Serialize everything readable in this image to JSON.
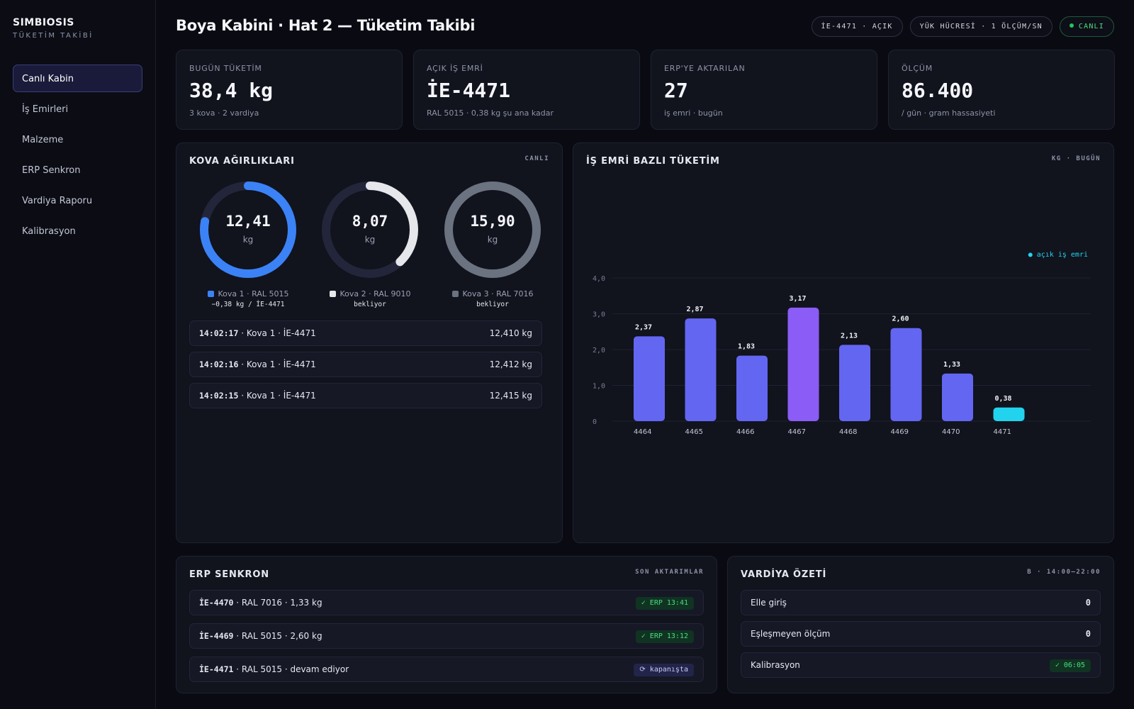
{
  "brand": {
    "title": "SIMBIOSIS",
    "subtitle": "TÜKETİM TAKİBİ"
  },
  "nav": [
    {
      "label": "Canlı Kabin",
      "active": true
    },
    {
      "label": "İş Emirleri"
    },
    {
      "label": "Malzeme"
    },
    {
      "label": "ERP Senkron"
    },
    {
      "label": "Vardiya Raporu"
    },
    {
      "label": "Kalibrasyon"
    }
  ],
  "header": {
    "title": "Boya Kabini · Hat 2 — Tüketim Takibi",
    "pills": [
      "İE-4471 · AÇIK",
      "YÜK HÜCRESİ · 1 ÖLÇÜM/SN",
      "CANLI"
    ]
  },
  "kpis": [
    {
      "label": "BUGÜN TÜKETİM",
      "value": "38,4 kg",
      "sub": "3 kova · 2 vardiya"
    },
    {
      "label": "AÇIK İŞ EMRİ",
      "value": "İE-4471",
      "sub": "RAL 5015 · 0,38 kg şu ana kadar"
    },
    {
      "label": "ERP'YE AKTARILAN",
      "value": "27",
      "sub": "iş emri · bugün"
    },
    {
      "label": "ÖLÇÜM",
      "value": "86.400",
      "sub": "/ gün · gram hassasiyeti"
    }
  ],
  "buckets": {
    "title": "KOVA AĞIRLIKLARI",
    "tag": "CANLI",
    "items": [
      {
        "value": "12,41",
        "unit": "kg",
        "fill": 0.78,
        "color": "#3b82f6",
        "label": "Kova 1 · RAL 5015",
        "status": "−0,38 kg / İE-4471"
      },
      {
        "value": "8,07",
        "unit": "kg",
        "fill": 0.38,
        "color": "#e5e7eb",
        "label": "Kova 2 · RAL 9010",
        "status": "bekliyor"
      },
      {
        "value": "15,90",
        "unit": "kg",
        "fill": 1.0,
        "color": "#6b7280",
        "label": "Kova 3 · RAL 7016",
        "status": "bekliyor"
      }
    ],
    "log": [
      {
        "time": "14:02:17",
        "desc": " · Kova 1 · İE-4471",
        "weight": "12,410 kg"
      },
      {
        "time": "14:02:16",
        "desc": " · Kova 1 · İE-4471",
        "weight": "12,412 kg"
      },
      {
        "time": "14:02:15",
        "desc": " · Kova 1 · İE-4471",
        "weight": "12,415 kg"
      }
    ]
  },
  "chart_panel": {
    "title": "İŞ EMRİ BAZLI TÜKETİM",
    "tag": "KG · BUGÜN"
  },
  "chart_data": {
    "type": "bar",
    "categories": [
      "4464",
      "4465",
      "4466",
      "4467",
      "4468",
      "4469",
      "4470",
      "4471"
    ],
    "values": [
      2.37,
      2.87,
      1.83,
      3.17,
      2.13,
      2.6,
      1.33,
      0.38
    ],
    "value_labels": [
      "2,37",
      "2,87",
      "1,83",
      "3,17",
      "2,13",
      "2,60",
      "1,33",
      "0,38"
    ],
    "colors": [
      "#6366f1",
      "#6366f1",
      "#6366f1",
      "#8b5cf6",
      "#6366f1",
      "#6366f1",
      "#6366f1",
      "#22d3ee"
    ],
    "yticks": [
      0,
      1,
      2,
      3,
      4
    ],
    "ytick_labels": [
      "0",
      "1,0",
      "2,0",
      "3,0",
      "4,0"
    ],
    "ylim": [
      0,
      4
    ],
    "legend": "● açık iş emri",
    "grid": true
  },
  "erp": {
    "title": "ERP SENKRON",
    "tag": "SON AKTARIMLAR",
    "rows": [
      {
        "id": "İE-4470",
        "desc": " · RAL 7016 · 1,33 kg",
        "badge": "✓ ERP 13:41",
        "state": "ok"
      },
      {
        "id": "İE-4469",
        "desc": " · RAL 5015 · 2,60 kg",
        "badge": "✓ ERP 13:12",
        "state": "ok"
      },
      {
        "id": "İE-4471",
        "desc": " · RAL 5015 · devam ediyor",
        "badge": "⟳ kapanışta",
        "state": "pending"
      }
    ]
  },
  "shift": {
    "title": "VARDİYA ÖZETİ",
    "tag": "B · 14:00–22:00",
    "rows": [
      {
        "label": "Elle giriş",
        "value": "0"
      },
      {
        "label": "Eşleşmeyen ölçüm",
        "value": "0"
      },
      {
        "label": "Kalibrasyon",
        "badge": "✓ 06:05"
      }
    ]
  }
}
